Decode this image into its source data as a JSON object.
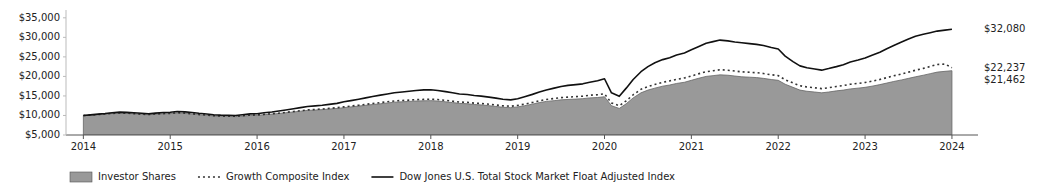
{
  "chart_data": {
    "type": "line",
    "background_color": "#ffffff",
    "xlim": [
      2013.8,
      2024.3
    ],
    "ylim": [
      5000,
      37000
    ],
    "xticks": [
      2014,
      2015,
      2016,
      2017,
      2018,
      2019,
      2020,
      2021,
      2022,
      2023,
      2024
    ],
    "yticks": [
      {
        "value": 5000,
        "label": "$5,000"
      },
      {
        "value": 10000,
        "label": "$10,000"
      },
      {
        "value": 15000,
        "label": "$15,000"
      },
      {
        "value": 20000,
        "label": "$20,000"
      },
      {
        "value": 25000,
        "label": "$25,000"
      },
      {
        "value": 30000,
        "label": "$30,000"
      },
      {
        "value": 35000,
        "label": "$35,000"
      }
    ],
    "grid": false,
    "legend": "bottom",
    "x": [
      2014.0,
      2014.08,
      2014.17,
      2014.25,
      2014.33,
      2014.42,
      2014.5,
      2014.58,
      2014.67,
      2014.75,
      2014.83,
      2014.92,
      2015.0,
      2015.08,
      2015.17,
      2015.25,
      2015.33,
      2015.42,
      2015.5,
      2015.58,
      2015.67,
      2015.75,
      2015.83,
      2015.92,
      2016.0,
      2016.08,
      2016.17,
      2016.25,
      2016.33,
      2016.42,
      2016.5,
      2016.58,
      2016.67,
      2016.75,
      2016.83,
      2016.92,
      2017.0,
      2017.08,
      2017.17,
      2017.25,
      2017.33,
      2017.42,
      2017.5,
      2017.58,
      2017.67,
      2017.75,
      2017.83,
      2017.92,
      2018.0,
      2018.08,
      2018.17,
      2018.25,
      2018.33,
      2018.42,
      2018.5,
      2018.58,
      2018.67,
      2018.75,
      2018.83,
      2018.92,
      2019.0,
      2019.08,
      2019.17,
      2019.25,
      2019.33,
      2019.42,
      2019.5,
      2019.58,
      2019.67,
      2019.75,
      2019.83,
      2019.92,
      2020.0,
      2020.08,
      2020.17,
      2020.25,
      2020.33,
      2020.42,
      2020.5,
      2020.58,
      2020.67,
      2020.75,
      2020.83,
      2020.92,
      2021.0,
      2021.08,
      2021.17,
      2021.25,
      2021.33,
      2021.42,
      2021.5,
      2021.58,
      2021.67,
      2021.75,
      2021.83,
      2021.92,
      2022.0,
      2022.08,
      2022.17,
      2022.25,
      2022.33,
      2022.42,
      2022.5,
      2022.58,
      2022.67,
      2022.75,
      2022.83,
      2022.92,
      2023.0,
      2023.08,
      2023.17,
      2023.25,
      2023.33,
      2023.42,
      2023.5,
      2023.58,
      2023.67,
      2023.75,
      2023.83,
      2023.92,
      2024.0
    ],
    "series": [
      {
        "name": "Investor Shares",
        "type": "area",
        "color": "#999999",
        "values": [
          10000,
          10100,
          10250,
          10350,
          10500,
          10600,
          10550,
          10450,
          10300,
          10200,
          10350,
          10450,
          10500,
          10650,
          10550,
          10400,
          10200,
          10050,
          9900,
          9800,
          9750,
          9700,
          9850,
          10000,
          10050,
          10200,
          10350,
          10500,
          10700,
          10900,
          11100,
          11300,
          11400,
          11500,
          11650,
          11800,
          12000,
          12200,
          12400,
          12600,
          12800,
          13000,
          13200,
          13400,
          13500,
          13600,
          13700,
          13750,
          13800,
          13700,
          13500,
          13300,
          13100,
          13000,
          12800,
          12700,
          12500,
          12300,
          12100,
          12000,
          12200,
          12500,
          12900,
          13300,
          13600,
          13800,
          14000,
          14100,
          14200,
          14300,
          14500,
          14600,
          14800,
          12500,
          11800,
          13000,
          14500,
          15800,
          16500,
          17000,
          17500,
          17800,
          18200,
          18500,
          19000,
          19500,
          20000,
          20200,
          20400,
          20300,
          20100,
          19900,
          19800,
          19700,
          19500,
          19200,
          19000,
          18000,
          17200,
          16500,
          16200,
          16000,
          15800,
          16000,
          16300,
          16500,
          16800,
          17000,
          17200,
          17500,
          17900,
          18300,
          18700,
          19100,
          19500,
          19900,
          20300,
          20700,
          21100,
          21300,
          21462
        ]
      },
      {
        "name": "Growth Composite Index",
        "type": "line",
        "color": "#333333",
        "line_style": "dotted",
        "values": [
          10000,
          10100,
          10250,
          10380,
          10520,
          10630,
          10580,
          10480,
          10330,
          10230,
          10380,
          10480,
          10540,
          10690,
          10600,
          10440,
          10240,
          10100,
          9950,
          9850,
          9820,
          9780,
          9930,
          10080,
          10130,
          10280,
          10440,
          10590,
          10800,
          11010,
          11220,
          11430,
          11540,
          11660,
          11820,
          11980,
          12200,
          12410,
          12630,
          12850,
          13070,
          13290,
          13500,
          13720,
          13830,
          13940,
          14050,
          14110,
          14170,
          14070,
          13870,
          13660,
          13450,
          13350,
          13150,
          13060,
          12870,
          12670,
          12460,
          12360,
          12580,
          12900,
          13330,
          13760,
          14100,
          14340,
          14580,
          14700,
          14820,
          14960,
          15180,
          15310,
          15550,
          13200,
          12500,
          13750,
          15300,
          16700,
          17400,
          17950,
          18500,
          18850,
          19250,
          19600,
          20100,
          20650,
          21200,
          21450,
          21700,
          21590,
          21380,
          21170,
          21060,
          20950,
          20740,
          20420,
          20200,
          19150,
          18320,
          17610,
          17290,
          17080,
          16880,
          17100,
          17430,
          17670,
          17990,
          18210,
          18440,
          18780,
          19220,
          19680,
          20150,
          20620,
          21100,
          21580,
          22060,
          22550,
          23040,
          23150,
          22237
        ]
      },
      {
        "name": "Dow Jones U.S. Total Stock Market Float Adjusted Index",
        "type": "line",
        "color": "#111111",
        "line_style": "solid",
        "values": [
          10000,
          10150,
          10350,
          10500,
          10700,
          10850,
          10800,
          10700,
          10550,
          10430,
          10600,
          10750,
          10820,
          11020,
          10920,
          10750,
          10550,
          10380,
          10200,
          10090,
          10050,
          10000,
          10200,
          10400,
          10450,
          10680,
          10900,
          11150,
          11400,
          11700,
          12000,
          12300,
          12450,
          12600,
          12850,
          13100,
          13500,
          13800,
          14150,
          14500,
          14850,
          15200,
          15500,
          15800,
          16000,
          16200,
          16400,
          16550,
          16600,
          16400,
          16100,
          15800,
          15500,
          15350,
          15100,
          14950,
          14700,
          14450,
          14150,
          14000,
          14300,
          14800,
          15400,
          16000,
          16500,
          17000,
          17400,
          17700,
          17900,
          18100,
          18500,
          18900,
          19400,
          15800,
          14900,
          17000,
          19200,
          21200,
          22500,
          23500,
          24300,
          24800,
          25500,
          26000,
          26800,
          27600,
          28500,
          28900,
          29300,
          29100,
          28800,
          28600,
          28400,
          28200,
          27900,
          27400,
          27000,
          25200,
          23800,
          22700,
          22200,
          21900,
          21600,
          22000,
          22500,
          23000,
          23700,
          24200,
          24700,
          25400,
          26200,
          27100,
          27900,
          28800,
          29600,
          30300,
          30800,
          31200,
          31600,
          31850,
          32080
        ]
      }
    ],
    "annotations": [
      {
        "text": "$32,080",
        "y": 32080
      },
      {
        "text": "$22,237",
        "y": 22237
      },
      {
        "text": "$21,462",
        "y": 21462
      }
    ]
  }
}
